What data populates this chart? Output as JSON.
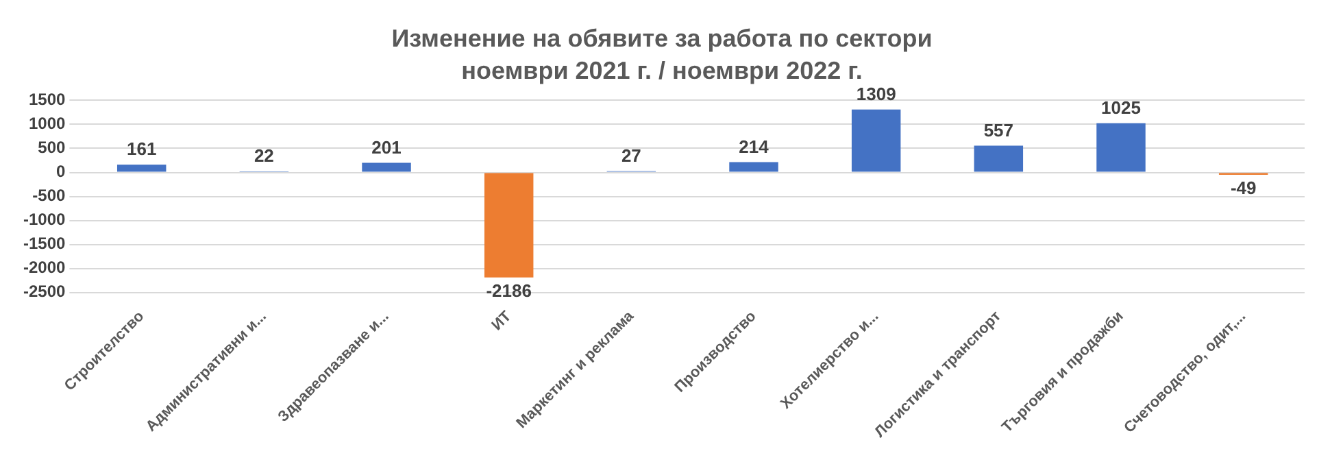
{
  "chart_data": {
    "type": "bar",
    "title": "Изменение на обявите за работа по сектори",
    "subtitle": "ноември 2021 г. / ноември 2022 г.",
    "categories": [
      "Строителство",
      "Административни и...",
      "Здравеопазване и...",
      "ИТ",
      "Маркетинг и реклама",
      "Производство",
      "Хотелиерство и...",
      "Логистика и транспорт",
      "Търговия и продажби",
      "Счетоводство, одит,..."
    ],
    "values": [
      161,
      22,
      201,
      -2186,
      27,
      214,
      1309,
      557,
      1025,
      -49
    ],
    "colors": [
      "#4472c4",
      "#4472c4",
      "#4472c4",
      "#ed7d31",
      "#4472c4",
      "#4472c4",
      "#4472c4",
      "#4472c4",
      "#4472c4",
      "#ed7d31"
    ],
    "ylim": [
      -2500,
      1500
    ],
    "yticks": [
      -2500,
      -2000,
      -1500,
      -1000,
      -500,
      0,
      500,
      1000,
      1500
    ],
    "grid": "y",
    "legend": false,
    "data_labels": true
  }
}
